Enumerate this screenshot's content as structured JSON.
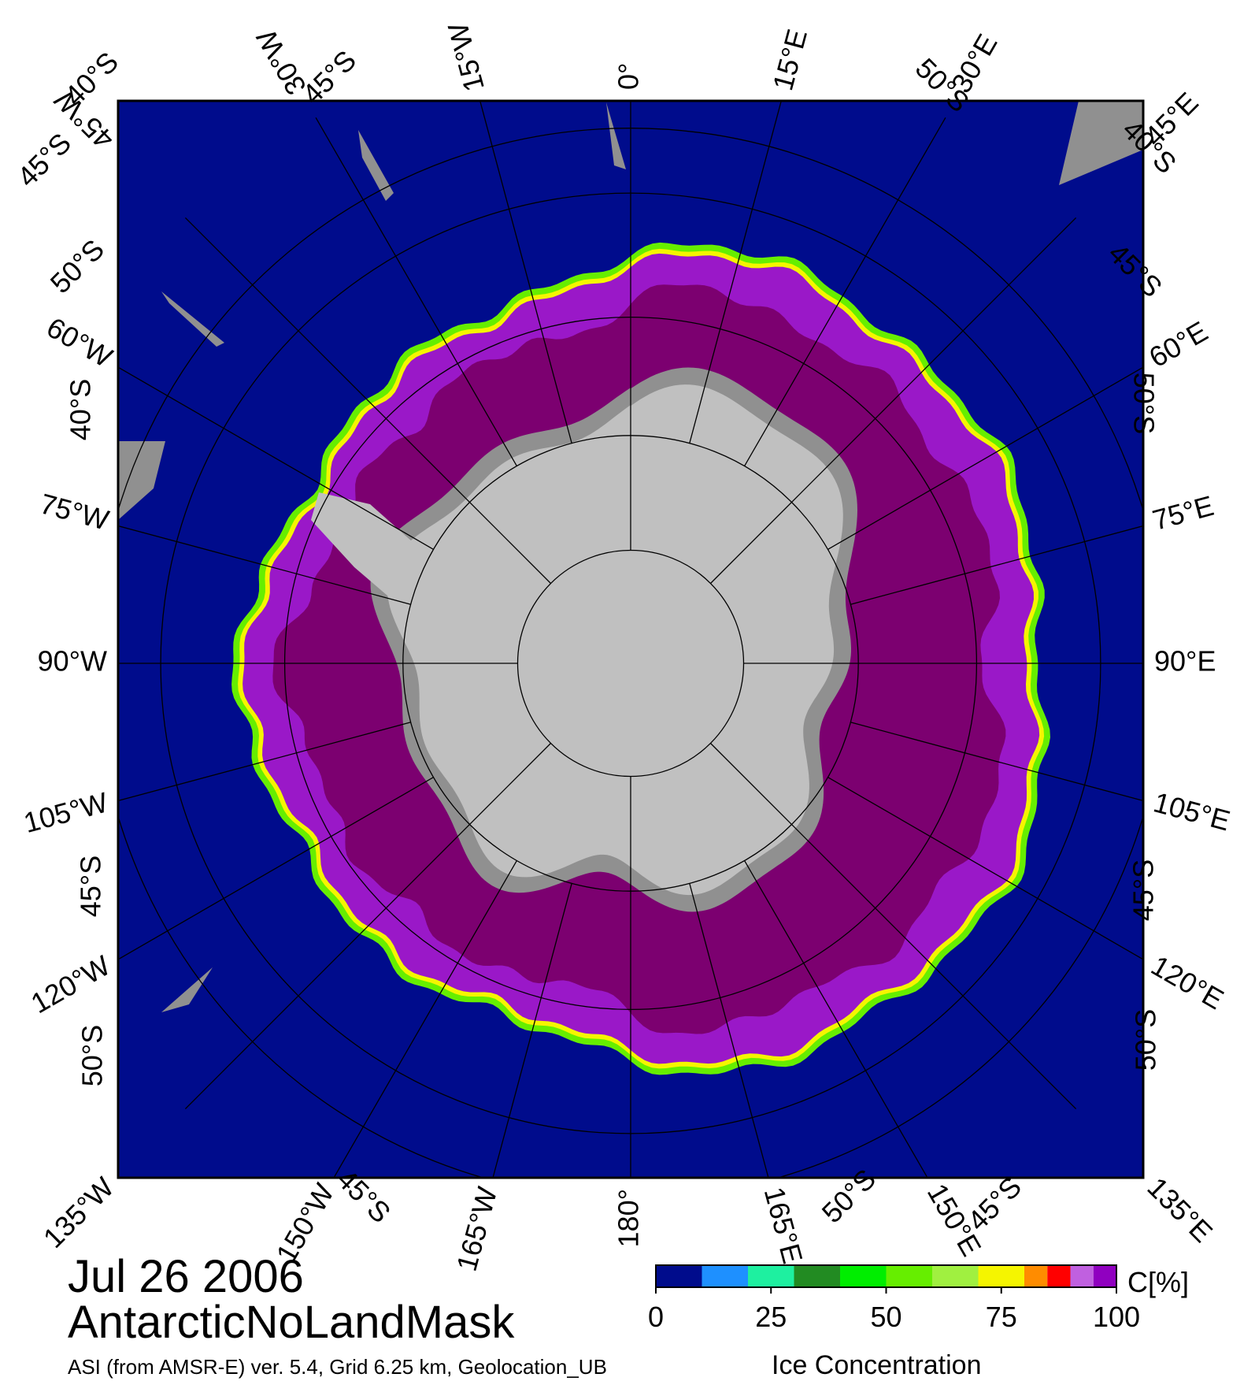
{
  "date_title": "Jul 26 2006",
  "product_title": "AntarcticNoLandMask",
  "footer_left": "ASI (from AMSR-E) ver. 5.4,  Grid 6.25 km, Geolocation_UB",
  "footer_right": "Ice Concentration",
  "colorbar": {
    "unit_label": "C[%]",
    "ticks": [
      "0",
      "25",
      "50",
      "75",
      "100"
    ],
    "bins": [
      {
        "from": 0,
        "to": 10,
        "color": "#000c8c"
      },
      {
        "from": 10,
        "to": 20,
        "color": "#1e90ff"
      },
      {
        "from": 20,
        "to": 30,
        "color": "#1ef0a0"
      },
      {
        "from": 30,
        "to": 40,
        "color": "#228b22"
      },
      {
        "from": 40,
        "to": 50,
        "color": "#00ee00"
      },
      {
        "from": 50,
        "to": 60,
        "color": "#66ee00"
      },
      {
        "from": 60,
        "to": 70,
        "color": "#a0f040"
      },
      {
        "from": 70,
        "to": 80,
        "color": "#f5f500"
      },
      {
        "from": 80,
        "to": 85,
        "color": "#ff8c00"
      },
      {
        "from": 85,
        "to": 90,
        "color": "#ff0000"
      },
      {
        "from": 90,
        "to": 95,
        "color": "#c060e0"
      },
      {
        "from": 95,
        "to": 100,
        "color": "#9000c0"
      }
    ]
  },
  "map": {
    "projection": "south polar stereographic",
    "colors": {
      "ocean": "#000c8c",
      "ice_core": "#7c0070",
      "ice_mid": "#9a18c8",
      "ice_edge_green": "#66ee00",
      "ice_edge_yellow": "#f5f500",
      "land": "#c0c0c0",
      "ice_shelf": "#909090",
      "graticule": "#000000"
    },
    "parallels": [
      45,
      50,
      60,
      70,
      80
    ],
    "meridian_step": 15,
    "lon_labels": [
      {
        "text": "0°",
        "lon": 0,
        "side": "top"
      },
      {
        "text": "15°E",
        "lon": 15,
        "side": "top"
      },
      {
        "text": "30°E",
        "lon": 30,
        "side": "top"
      },
      {
        "text": "45°E",
        "lon": 45,
        "side": "top"
      },
      {
        "text": "15°W",
        "lon": -15,
        "side": "top"
      },
      {
        "text": "30°W",
        "lon": -30,
        "side": "top"
      },
      {
        "text": "45°W",
        "lon": -45,
        "side": "top"
      },
      {
        "text": "60°E",
        "lon": 60,
        "side": "right"
      },
      {
        "text": "75°E",
        "lon": 75,
        "side": "right"
      },
      {
        "text": "90°E",
        "lon": 90,
        "side": "right"
      },
      {
        "text": "105°E",
        "lon": 105,
        "side": "right"
      },
      {
        "text": "120°E",
        "lon": 120,
        "side": "right"
      },
      {
        "text": "135°E",
        "lon": 135,
        "side": "bottom"
      },
      {
        "text": "150°E",
        "lon": 150,
        "side": "bottom"
      },
      {
        "text": "165°E",
        "lon": 165,
        "side": "bottom"
      },
      {
        "text": "180°",
        "lon": 180,
        "side": "bottom"
      },
      {
        "text": "165°W",
        "lon": -165,
        "side": "bottom"
      },
      {
        "text": "150°W",
        "lon": -150,
        "side": "bottom"
      },
      {
        "text": "135°W",
        "lon": -135,
        "side": "bottom"
      },
      {
        "text": "60°W",
        "lon": -60,
        "side": "left"
      },
      {
        "text": "75°W",
        "lon": -75,
        "side": "left"
      },
      {
        "text": "90°W",
        "lon": -90,
        "side": "left"
      },
      {
        "text": "105°W",
        "lon": -105,
        "side": "left"
      },
      {
        "text": "120°W",
        "lon": -120,
        "side": "left"
      }
    ],
    "lat_labels": [
      "40°S",
      "45°S",
      "50°S",
      "40°S",
      "45°S",
      "50°S",
      "40°S",
      "45°S",
      "50°S",
      "45°S",
      "50°S",
      "45°S",
      "50°S",
      "45°S",
      "50°S",
      "45°S"
    ]
  }
}
